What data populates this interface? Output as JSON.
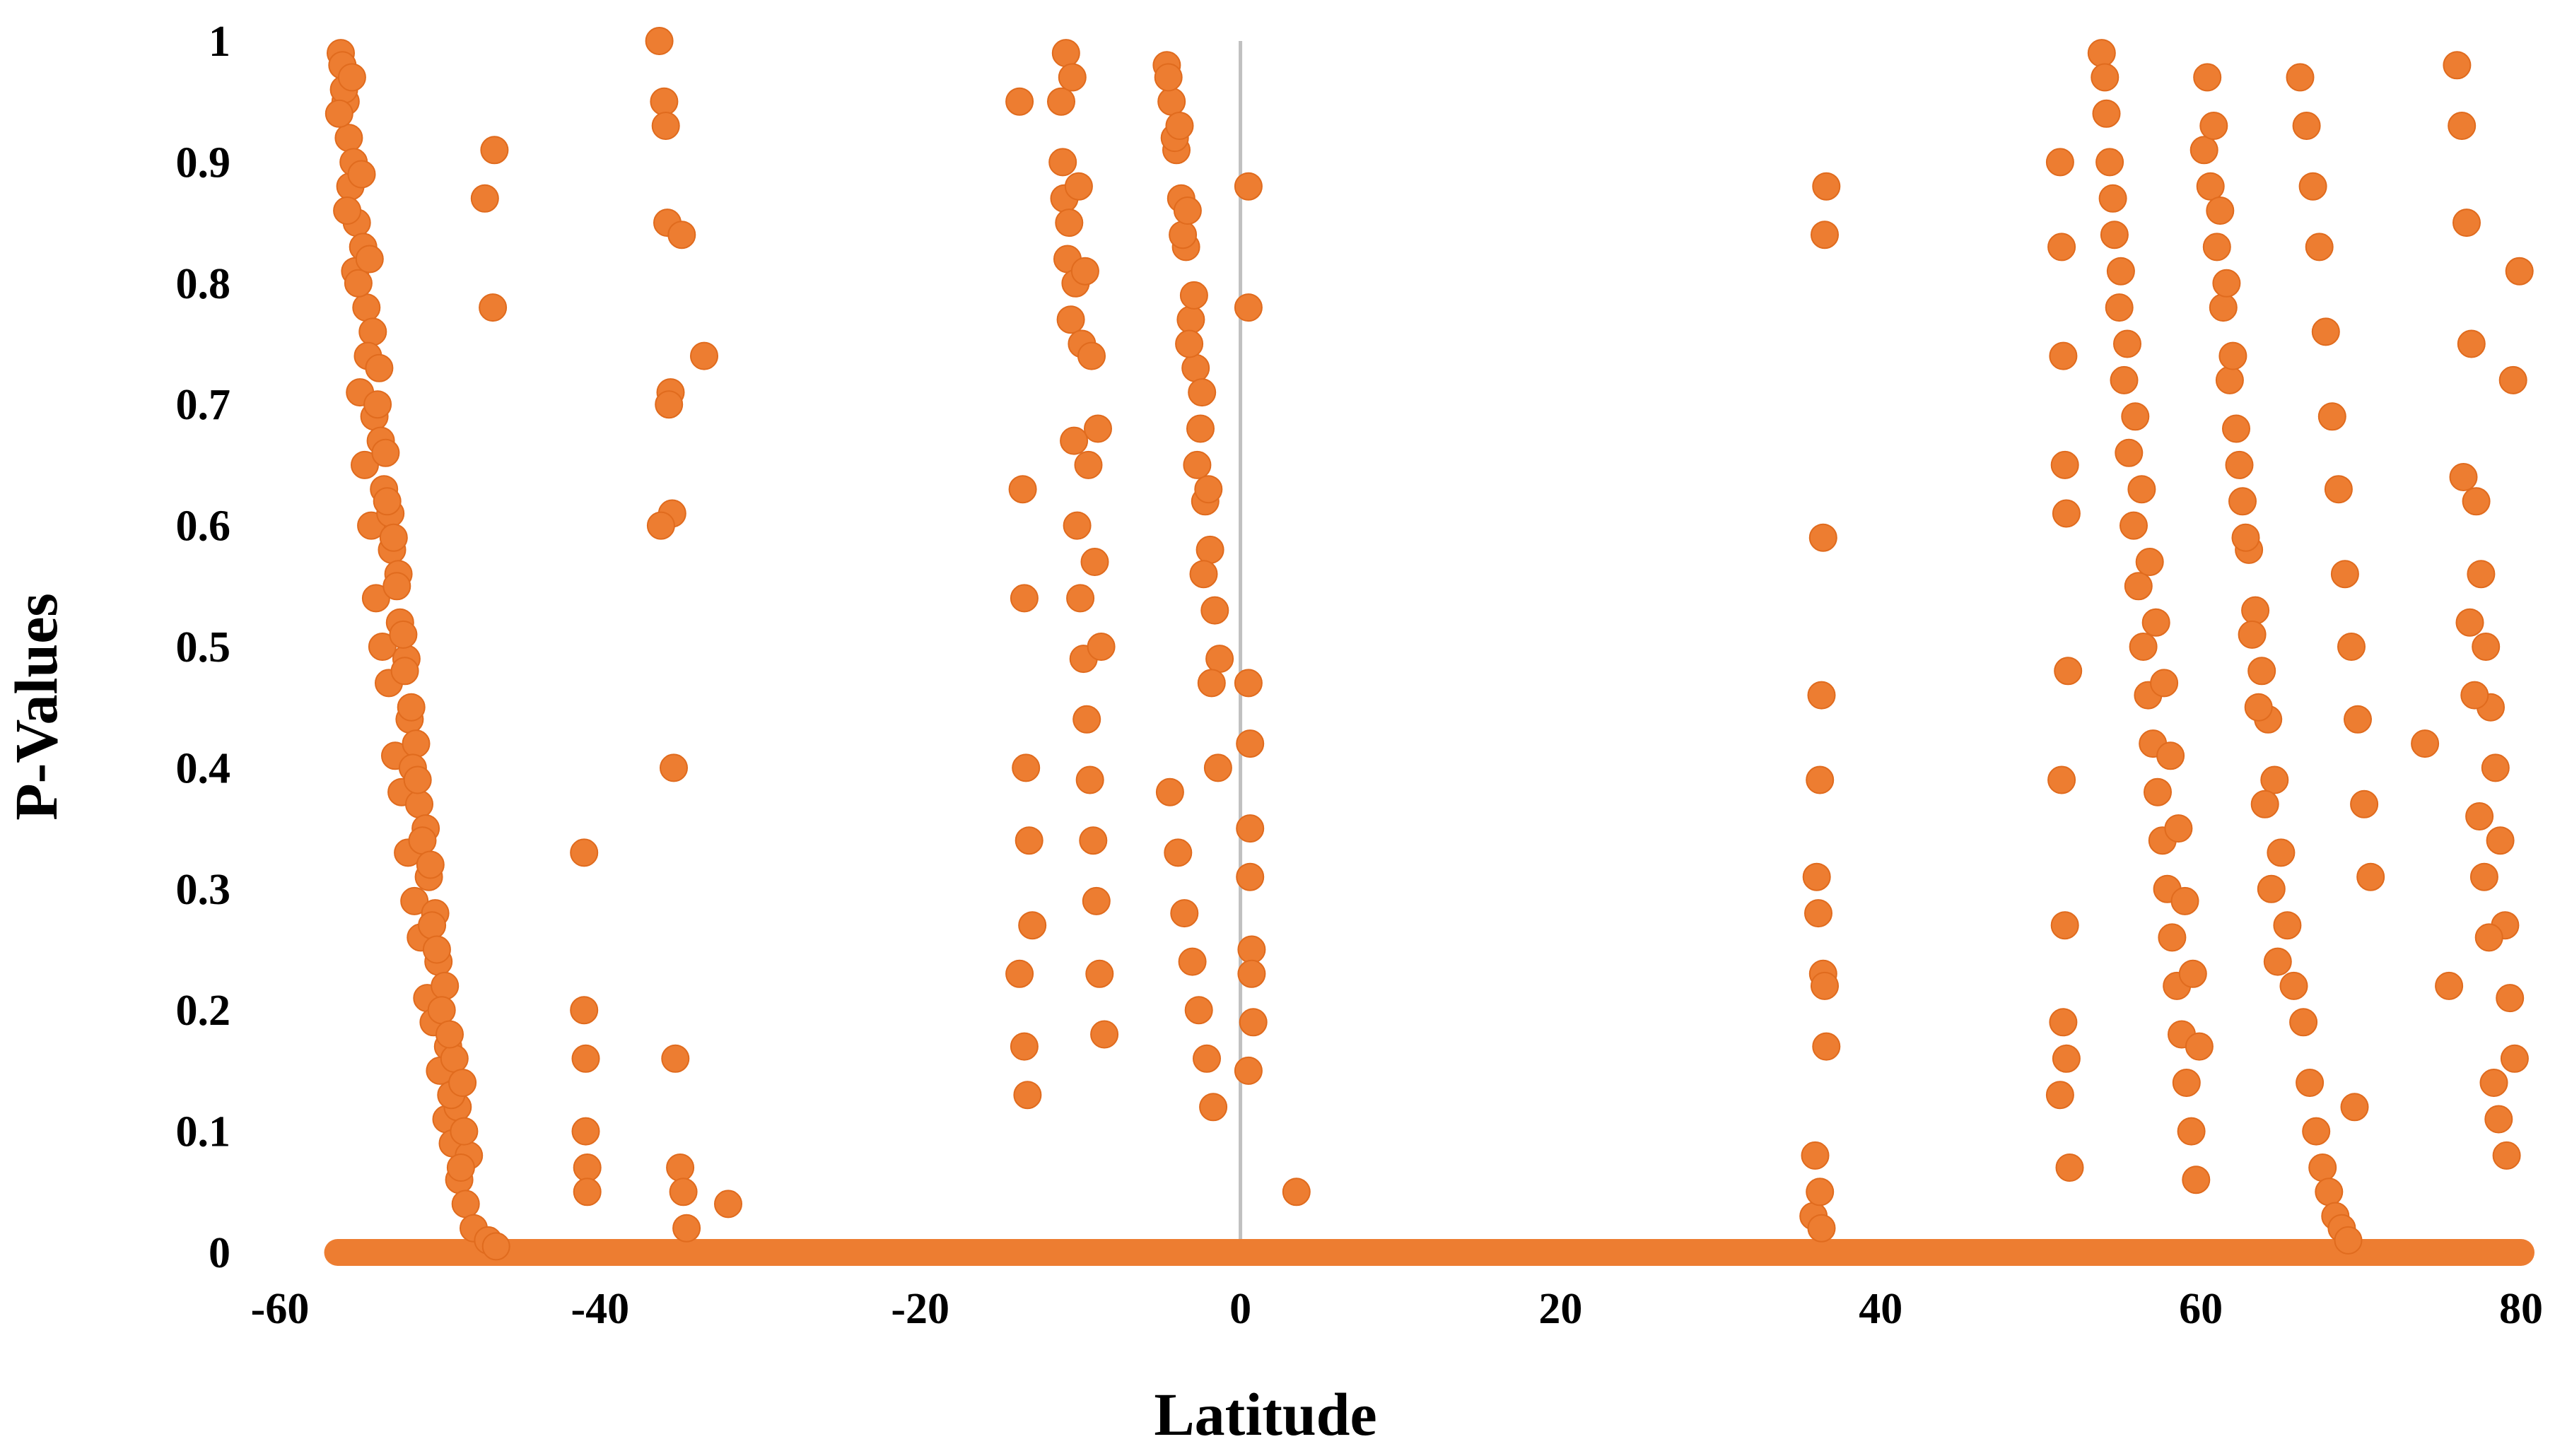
{
  "chart_data": {
    "type": "scatter",
    "title": "",
    "xlabel": "Latitude",
    "ylabel": "P-Values",
    "xlim": [
      -60,
      80
    ],
    "ylim": [
      0,
      1
    ],
    "x_ticks": [
      "-60",
      "-40",
      "-20",
      "0",
      "20",
      "40",
      "60",
      "80"
    ],
    "y_ticks": [
      "0",
      "0.1",
      "0.2",
      "0.3",
      "0.4",
      "0.5",
      "0.6",
      "0.7",
      "0.8",
      "0.9",
      "1"
    ],
    "grid": false,
    "legend": "none",
    "marker_color": "#ED7D31",
    "marker_edge_color": "#E06B1E",
    "zero_line_color": "#C0C0C0",
    "baseline_points": "all latitudes from about -56 to 80 have many points at P-Value 0",
    "series": [
      {
        "x": [
          -56.2,
          -55.9,
          -55.6,
          -55.3,
          -55.0,
          -54.7,
          -54.3,
          -54.0,
          -53.6,
          -53.2,
          -52.8,
          -52.4,
          -52.0,
          -51.6,
          -51.2,
          -50.8,
          -50.4,
          -50.0,
          -49.6,
          -49.2,
          -48.8,
          -48.4,
          -47.9,
          -47.0,
          -46.5,
          -56.1,
          -55.7,
          -55.2,
          -54.6,
          -54.1,
          -53.5,
          -53.0,
          -52.5,
          -51.9,
          -51.3,
          -50.7,
          -50.1,
          -49.5,
          -48.9,
          -48.2,
          -46.6,
          -56.0,
          -55.4,
          -54.8,
          -54.2,
          -53.7,
          -53.1,
          -52.6,
          -52.1,
          -51.5,
          -50.9,
          -50.3,
          -49.7,
          -49.1,
          -48.5,
          -47.2,
          -56.3,
          -55.8,
          -55.1,
          -54.5,
          -53.9,
          -53.3,
          -52.7,
          -52.2,
          -51.7,
          -51.1,
          -50.5,
          -49.9,
          -49.3,
          -48.7,
          -46.7,
          -55.5,
          -54.9,
          -54.4,
          -53.8,
          -53.4,
          -52.9,
          -52.3,
          -51.8,
          -51.4,
          -50.6,
          -50.2,
          -49.4,
          -48.6,
          -41.0,
          -41.0,
          -40.9,
          -40.9,
          -40.8,
          -40.8,
          -36.3,
          -36.0,
          -35.8,
          -35.6,
          -35.5,
          -35.4,
          -35.3,
          -35.0,
          -34.8,
          -34.6,
          -36.2,
          -35.9,
          -35.7,
          -34.9,
          -32.0,
          -33.5,
          -13.8,
          -13.6,
          -13.5,
          -13.4,
          -13.2,
          -13.0,
          -13.8,
          -13.5,
          -13.3,
          -11.2,
          -11.0,
          -10.8,
          -10.6,
          -10.4,
          -10.2,
          -10.0,
          -9.8,
          -9.6,
          -9.4,
          -9.2,
          -9.0,
          -8.8,
          -8.5,
          -11.1,
          -10.7,
          -10.3,
          -9.9,
          -9.5,
          -9.1,
          -8.7,
          -10.9,
          -10.5,
          -10.1,
          -9.7,
          -9.3,
          -8.9,
          -4.6,
          -4.3,
          -4.0,
          -3.7,
          -3.4,
          -3.1,
          -2.8,
          -2.5,
          -2.2,
          -1.9,
          -1.6,
          -1.3,
          -4.5,
          -4.1,
          -3.6,
          -3.2,
          -2.7,
          -2.3,
          -1.8,
          -1.4,
          -4.4,
          -3.9,
          -3.5,
          -3.0,
          -2.6,
          -2.1,
          -1.7,
          -3.8,
          -3.3,
          -2.9,
          -2.4,
          -2.0,
          0.5,
          0.5,
          0.5,
          0.6,
          0.6,
          0.6,
          0.7,
          0.7,
          0.8,
          0.5,
          3.5,
          35.8,
          35.9,
          36.0,
          36.1,
          36.2,
          36.3,
          36.4,
          36.5,
          36.6,
          36.4,
          36.5,
          36.6,
          36.2,
          36.3,
          51.2,
          51.3,
          51.4,
          51.5,
          51.6,
          51.7,
          51.3,
          51.5,
          51.4,
          51.6,
          51.2,
          51.8,
          53.8,
          54.0,
          54.3,
          54.6,
          54.9,
          55.2,
          55.5,
          55.8,
          56.1,
          56.4,
          56.7,
          57.0,
          57.3,
          57.6,
          57.9,
          58.2,
          58.5,
          58.8,
          59.1,
          59.4,
          59.7,
          54.1,
          54.5,
          55.0,
          55.4,
          55.9,
          56.3,
          56.8,
          57.2,
          57.7,
          58.1,
          58.6,
          59.0,
          59.5,
          59.9,
          60.2,
          60.6,
          61.0,
          61.4,
          61.8,
          62.2,
          62.6,
          63.0,
          63.4,
          63.8,
          64.2,
          64.6,
          65.0,
          65.4,
          65.8,
          60.4,
          60.8,
          61.2,
          61.6,
          62.0,
          62.4,
          62.8,
          63.2,
          63.6,
          64.0,
          64.4,
          64.8,
          66.2,
          66.6,
          67.0,
          67.4,
          67.8,
          68.2,
          68.6,
          69.0,
          69.4,
          69.8,
          70.2,
          70.6,
          66.4,
          66.8,
          67.2,
          67.6,
          68.0,
          68.4,
          68.8,
          69.2,
          69.6,
          74.0,
          75.5,
          76.0,
          76.3,
          76.6,
          76.9,
          77.2,
          77.5,
          77.8,
          78.1,
          78.4,
          78.7,
          79.0,
          79.3,
          79.6,
          79.9,
          76.4,
          76.8,
          77.1,
          77.4,
          77.7,
          78.0,
          78.3,
          78.6,
          79.1,
          79.5
        ],
        "y": [
          0.99,
          0.95,
          0.88,
          0.81,
          0.71,
          0.65,
          0.6,
          0.54,
          0.5,
          0.47,
          0.41,
          0.38,
          0.33,
          0.29,
          0.26,
          0.21,
          0.19,
          0.15,
          0.11,
          0.09,
          0.06,
          0.04,
          0.02,
          0.01,
          0.005,
          0.98,
          0.92,
          0.85,
          0.78,
          0.69,
          0.63,
          0.58,
          0.52,
          0.44,
          0.37,
          0.31,
          0.24,
          0.17,
          0.12,
          0.08,
          0.91,
          0.96,
          0.9,
          0.83,
          0.76,
          0.67,
          0.61,
          0.56,
          0.49,
          0.42,
          0.35,
          0.28,
          0.22,
          0.16,
          0.1,
          0.87,
          0.94,
          0.86,
          0.8,
          0.74,
          0.7,
          0.62,
          0.55,
          0.48,
          0.4,
          0.34,
          0.27,
          0.2,
          0.13,
          0.07,
          0.78,
          0.97,
          0.89,
          0.82,
          0.73,
          0.66,
          0.59,
          0.51,
          0.45,
          0.39,
          0.32,
          0.25,
          0.18,
          0.14,
          0.33,
          0.2,
          0.16,
          0.1,
          0.07,
          0.05,
          1.0,
          0.95,
          0.85,
          0.71,
          0.61,
          0.4,
          0.16,
          0.07,
          0.05,
          0.02,
          0.6,
          0.93,
          0.7,
          0.84,
          0.04,
          0.74,
          0.95,
          0.63,
          0.54,
          0.4,
          0.34,
          0.27,
          0.23,
          0.17,
          0.13,
          0.95,
          0.87,
          0.82,
          0.77,
          0.67,
          0.6,
          0.54,
          0.49,
          0.44,
          0.39,
          0.34,
          0.29,
          0.23,
          0.18,
          0.9,
          0.85,
          0.8,
          0.75,
          0.65,
          0.57,
          0.5,
          0.99,
          0.97,
          0.88,
          0.81,
          0.74,
          0.68,
          0.98,
          0.95,
          0.91,
          0.87,
          0.83,
          0.77,
          0.73,
          0.68,
          0.62,
          0.58,
          0.53,
          0.49,
          0.97,
          0.92,
          0.84,
          0.75,
          0.65,
          0.56,
          0.47,
          0.4,
          0.38,
          0.33,
          0.28,
          0.24,
          0.2,
          0.16,
          0.12,
          0.93,
          0.86,
          0.79,
          0.71,
          0.63,
          0.88,
          0.78,
          0.47,
          0.42,
          0.35,
          0.31,
          0.25,
          0.23,
          0.19,
          0.15,
          0.05,
          0.03,
          0.08,
          0.31,
          0.28,
          0.39,
          0.46,
          0.59,
          0.84,
          0.88,
          0.23,
          0.22,
          0.17,
          0.05,
          0.02,
          0.9,
          0.83,
          0.74,
          0.65,
          0.61,
          0.48,
          0.39,
          0.27,
          0.19,
          0.16,
          0.13,
          0.07,
          0.99,
          0.97,
          0.9,
          0.84,
          0.78,
          0.72,
          0.66,
          0.6,
          0.55,
          0.5,
          0.46,
          0.42,
          0.38,
          0.34,
          0.3,
          0.26,
          0.22,
          0.18,
          0.14,
          0.1,
          0.06,
          0.94,
          0.87,
          0.81,
          0.75,
          0.69,
          0.63,
          0.57,
          0.52,
          0.47,
          0.41,
          0.35,
          0.29,
          0.23,
          0.17,
          0.91,
          0.88,
          0.83,
          0.78,
          0.72,
          0.68,
          0.62,
          0.58,
          0.53,
          0.48,
          0.44,
          0.39,
          0.33,
          0.27,
          0.22,
          0.97,
          0.93,
          0.86,
          0.8,
          0.74,
          0.65,
          0.59,
          0.51,
          0.45,
          0.37,
          0.3,
          0.24,
          0.97,
          0.93,
          0.88,
          0.83,
          0.76,
          0.69,
          0.63,
          0.56,
          0.5,
          0.44,
          0.37,
          0.31,
          0.19,
          0.14,
          0.1,
          0.07,
          0.05,
          0.03,
          0.02,
          0.01,
          0.12,
          0.42,
          0.22,
          0.98,
          0.93,
          0.85,
          0.75,
          0.62,
          0.56,
          0.5,
          0.45,
          0.4,
          0.34,
          0.27,
          0.21,
          0.16,
          0.81,
          0.64,
          0.52,
          0.46,
          0.36,
          0.31,
          0.26,
          0.14,
          0.11,
          0.08,
          0.72
        ]
      }
    ]
  }
}
